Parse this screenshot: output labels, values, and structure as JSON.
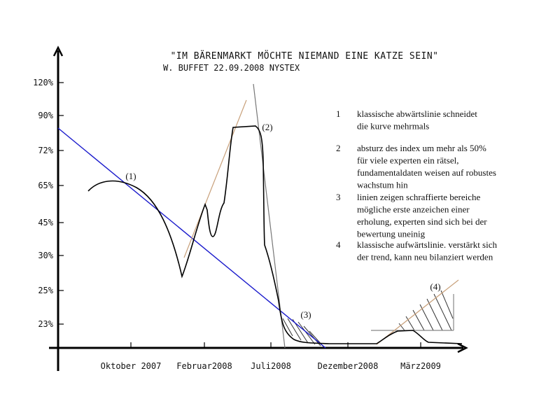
{
  "title": "\"IM BÄRENMARKT MÖCHTE NIEMAND EINE KATZE SEIN\"",
  "subtitle": "W. BUFFET 22.09.2008 NYSTEX",
  "y_axis_labels": [
    "120%",
    "90%",
    "72%",
    "65%",
    "45%",
    "30%",
    "25%",
    "23%"
  ],
  "x_axis_labels": [
    "Oktober 2007",
    "Februar2008",
    "Juli2008",
    "Dezember2008",
    "März2009"
  ],
  "markers": [
    "(1)",
    "(2)",
    "(3)",
    "(4)"
  ],
  "notes": [
    {
      "number": "1",
      "lines": [
        "klassische abwärtslinie schneidet",
        "die kurve mehrmals"
      ]
    },
    {
      "number": "2",
      "lines": [
        "absturz des index um mehr als 50%",
        "für viele experten ein rätsel,",
        "fundamentaldaten weisen auf robustes",
        "wachstum hin"
      ]
    },
    {
      "number": "3",
      "lines": [
        "linien zeigen schraffierte bereiche",
        "mögliche erste anzeichen einer",
        "erholung, experten sind sich bei der",
        "bewertung uneinig"
      ]
    },
    {
      "number": "4",
      "lines": [
        "klassische aufwärtslinie. verstärkt sich",
        "der trend, kann neu bilanziert werden"
      ]
    }
  ]
}
